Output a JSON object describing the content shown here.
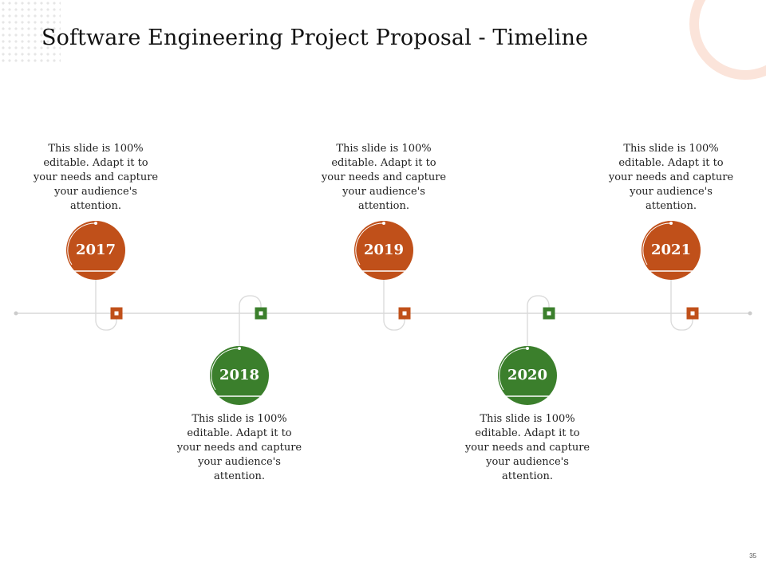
{
  "slide": {
    "title": "Software Engineering Project Proposal - Timeline",
    "page_number": "35"
  },
  "colors": {
    "orange": "#c0501a",
    "green": "#3b7f2c",
    "line": "#d9d9d9",
    "accent_light": "#fbe4da"
  },
  "timeline": [
    {
      "year": "2017",
      "text": "This slide is 100% editable. Adapt it to your needs and capture your audience's attention.",
      "color": "orange"
    },
    {
      "year": "2018",
      "text": "This slide is 100% editable. Adapt it to your needs and capture your audience's attention.",
      "color": "green"
    },
    {
      "year": "2019",
      "text": "This slide is 100% editable. Adapt it to your needs and capture your audience's attention.",
      "color": "orange"
    },
    {
      "year": "2020",
      "text": "This slide is 100% editable. Adapt it to your needs and capture your audience's attention.",
      "color": "green"
    },
    {
      "year": "2021",
      "text": "This slide is 100% editable. Adapt it to your needs and capture your audience's attention.",
      "color": "orange"
    }
  ]
}
